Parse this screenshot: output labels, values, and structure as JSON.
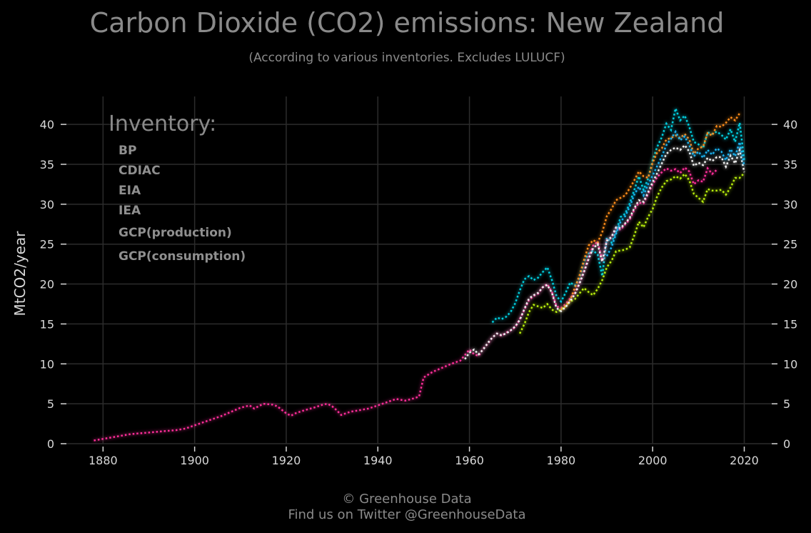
{
  "chart_data": {
    "type": "line",
    "title": "Carbon Dioxide (CO2) emissions: New Zealand",
    "subtitle": "(According to various inventories. Excludes LULUCF)",
    "ylabel": "MtCO2/year",
    "xlim": [
      1872,
      2026
    ],
    "ylim": [
      0,
      43.5
    ],
    "x_ticks": [
      1880,
      1900,
      1920,
      1940,
      1960,
      1980,
      2000,
      2020
    ],
    "y_ticks": [
      0,
      5,
      10,
      15,
      20,
      25,
      30,
      35,
      40
    ],
    "grid": true,
    "legend_title": "Inventory:",
    "legend_position": "top-left",
    "series": [
      {
        "name": "BP",
        "color": "#00cfe0",
        "x": [
          1965,
          1966,
          1967,
          1968,
          1969,
          1970,
          1971,
          1972,
          1973,
          1974,
          1975,
          1976,
          1977,
          1978,
          1979,
          1980,
          1981,
          1982,
          1983,
          1984,
          1985,
          1986,
          1987,
          1988,
          1989,
          1990,
          1991,
          1992,
          1993,
          1994,
          1995,
          1996,
          1997,
          1998,
          1999,
          2000,
          2001,
          2002,
          2003,
          2004,
          2005,
          2006,
          2007,
          2008,
          2009,
          2010,
          2011,
          2012,
          2013,
          2014,
          2015,
          2016,
          2017,
          2018,
          2019,
          2020
        ],
        "y": [
          15.2,
          15.8,
          15.6,
          15.9,
          16.5,
          17.6,
          19.2,
          20.6,
          21.0,
          20.5,
          20.8,
          21.5,
          22.1,
          20.5,
          18.5,
          17.8,
          18.9,
          20.2,
          19.8,
          20.6,
          22.8,
          23.8,
          24.2,
          23.7,
          21.0,
          25.8,
          25.2,
          26.5,
          28.4,
          28.8,
          30.1,
          31.8,
          33.5,
          31.8,
          33.2,
          35.5,
          37.2,
          38.4,
          40.1,
          39.3,
          42.0,
          40.5,
          41.1,
          39.7,
          37.8,
          37.5,
          37.0,
          39.0,
          38.8,
          39.1,
          38.7,
          38.1,
          39.4,
          37.8,
          40.2,
          35.5
        ]
      },
      {
        "name": "CDIAC",
        "color": "#ff2d9a",
        "x": [
          1878,
          1880,
          1882,
          1884,
          1886,
          1888,
          1890,
          1892,
          1894,
          1896,
          1898,
          1900,
          1902,
          1904,
          1906,
          1908,
          1910,
          1912,
          1913,
          1915,
          1917,
          1918,
          1920,
          1921,
          1922,
          1924,
          1926,
          1928,
          1929,
          1930,
          1931,
          1932,
          1934,
          1936,
          1938,
          1940,
          1942,
          1944,
          1946,
          1948,
          1949,
          1950,
          1952,
          1954,
          1956,
          1958,
          1960,
          1961,
          1962,
          1963,
          1964,
          1965,
          1966,
          1967,
          1968,
          1969,
          1970,
          1971,
          1972,
          1973,
          1974,
          1975,
          1976,
          1977,
          1978,
          1979,
          1980,
          1981,
          1982,
          1983,
          1984,
          1985,
          1986,
          1987,
          1988,
          1989,
          1990,
          1991,
          1992,
          1993,
          1994,
          1995,
          1996,
          1997,
          1998,
          1999,
          2000,
          2001,
          2002,
          2003,
          2004,
          2005,
          2006,
          2007,
          2008,
          2009,
          2010,
          2011,
          2012,
          2013,
          2014
        ],
        "y": [
          0.4,
          0.6,
          0.8,
          1.0,
          1.2,
          1.3,
          1.4,
          1.5,
          1.6,
          1.7,
          1.9,
          2.3,
          2.7,
          3.1,
          3.5,
          4.0,
          4.5,
          4.8,
          4.4,
          5.0,
          4.9,
          4.7,
          3.8,
          3.5,
          3.8,
          4.2,
          4.5,
          4.9,
          5.0,
          4.7,
          4.2,
          3.6,
          4.0,
          4.2,
          4.4,
          4.8,
          5.2,
          5.6,
          5.4,
          5.7,
          5.9,
          8.3,
          9.0,
          9.5,
          10.0,
          10.4,
          11.8,
          11.2,
          11.0,
          11.9,
          12.5,
          13.3,
          13.8,
          13.5,
          13.9,
          14.2,
          14.6,
          15.6,
          16.8,
          18.0,
          18.5,
          18.8,
          19.6,
          20.0,
          19.0,
          17.2,
          17.0,
          17.5,
          18.2,
          18.9,
          20.1,
          21.6,
          23.3,
          24.8,
          25.3,
          22.9,
          25.5,
          25.8,
          27.0,
          26.8,
          27.5,
          28.1,
          29.3,
          30.2,
          30.1,
          31.3,
          32.5,
          33.4,
          34.0,
          34.5,
          34.2,
          34.4,
          33.9,
          34.6,
          34.1,
          32.5,
          33.0,
          32.8,
          34.5,
          33.8,
          34.3
        ]
      },
      {
        "name": "EIA",
        "color": "#ff8c1a",
        "x": [
          1980,
          1981,
          1982,
          1983,
          1984,
          1985,
          1986,
          1987,
          1988,
          1989,
          1990,
          1991,
          1992,
          1993,
          1994,
          1995,
          1996,
          1997,
          1998,
          1999,
          2000,
          2001,
          2002,
          2003,
          2004,
          2005,
          2006,
          2007,
          2008,
          2009,
          2010,
          2011,
          2012,
          2013,
          2014,
          2015,
          2016,
          2017,
          2018,
          2019
        ],
        "y": [
          16.8,
          17.2,
          18.0,
          19.5,
          21.0,
          23.0,
          24.8,
          25.5,
          25.2,
          26.5,
          28.5,
          29.4,
          30.5,
          30.8,
          31.1,
          32.0,
          33.0,
          34.1,
          33.5,
          33.3,
          35.2,
          36.5,
          37.0,
          38.1,
          38.3,
          38.6,
          38.3,
          38.8,
          38.1,
          36.3,
          37.0,
          37.2,
          38.9,
          38.6,
          39.8,
          39.7,
          40.2,
          40.9,
          40.5,
          41.4
        ]
      },
      {
        "name": "IEA",
        "color": "#b8ee10",
        "x": [
          1971,
          1972,
          1973,
          1974,
          1975,
          1976,
          1977,
          1978,
          1979,
          1980,
          1981,
          1982,
          1983,
          1984,
          1985,
          1986,
          1987,
          1988,
          1989,
          1990,
          1991,
          1992,
          1993,
          1994,
          1995,
          1996,
          1997,
          1998,
          1999,
          2000,
          2001,
          2002,
          2003,
          2004,
          2005,
          2006,
          2007,
          2008,
          2009,
          2010,
          2011,
          2012,
          2013,
          2014,
          2015,
          2016,
          2017,
          2018,
          2019,
          2020
        ],
        "y": [
          13.8,
          15.0,
          16.5,
          17.4,
          17.2,
          17.0,
          17.5,
          16.8,
          16.5,
          16.8,
          17.2,
          17.8,
          18.1,
          18.8,
          19.5,
          19.0,
          18.6,
          19.4,
          20.5,
          22.1,
          22.9,
          24.1,
          24.2,
          24.3,
          24.6,
          26.1,
          27.8,
          27.1,
          28.4,
          29.4,
          31.0,
          32.1,
          32.9,
          33.1,
          33.5,
          33.2,
          33.8,
          33.0,
          31.3,
          30.8,
          30.3,
          31.9,
          31.7,
          31.7,
          31.8,
          31.2,
          32.1,
          33.3,
          33.3,
          33.9
        ]
      },
      {
        "name": "GCP(production)",
        "color": "#f2f2f2",
        "x": [
          1959,
          1960,
          1961,
          1962,
          1963,
          1964,
          1965,
          1966,
          1967,
          1968,
          1969,
          1970,
          1971,
          1972,
          1973,
          1974,
          1975,
          1976,
          1977,
          1978,
          1979,
          1980,
          1981,
          1982,
          1983,
          1984,
          1985,
          1986,
          1987,
          1988,
          1989,
          1990,
          1991,
          1992,
          1993,
          1994,
          1995,
          1996,
          1997,
          1998,
          1999,
          2000,
          2001,
          2002,
          2003,
          2004,
          2005,
          2006,
          2007,
          2008,
          2009,
          2010,
          2011,
          2012,
          2013,
          2014,
          2015,
          2016,
          2017,
          2018,
          2019,
          2020
        ],
        "y": [
          10.6,
          11.4,
          11.8,
          11.2,
          11.8,
          12.6,
          13.3,
          13.8,
          13.6,
          13.8,
          14.2,
          14.7,
          15.5,
          16.9,
          18.2,
          18.6,
          18.9,
          19.6,
          19.9,
          18.9,
          17.0,
          16.6,
          17.1,
          17.9,
          18.7,
          20.0,
          21.5,
          23.1,
          24.5,
          25.0,
          22.8,
          25.4,
          25.9,
          27.1,
          27.0,
          27.6,
          28.3,
          29.5,
          30.5,
          30.3,
          31.5,
          32.8,
          33.9,
          35.1,
          36.3,
          36.8,
          37.1,
          36.8,
          37.4,
          36.6,
          34.8,
          35.2,
          34.9,
          35.8,
          35.4,
          35.9,
          35.9,
          34.7,
          36.1,
          35.1,
          36.8,
          34.0
        ]
      },
      {
        "name": "GCP(consumption)",
        "color": "#1ab2f0",
        "x": [
          1990,
          1991,
          1992,
          1993,
          1994,
          1995,
          1996,
          1997,
          1998,
          1999,
          2000,
          2001,
          2002,
          2003,
          2004,
          2005,
          2006,
          2007,
          2008,
          2009,
          2010,
          2011,
          2012,
          2013,
          2014,
          2015,
          2016,
          2017,
          2018,
          2019,
          2020
        ],
        "y": [
          23.5,
          24.6,
          26.3,
          27.8,
          28.5,
          29.7,
          31.2,
          32.2,
          31.1,
          32.5,
          33.6,
          34.8,
          36.0,
          37.4,
          38.2,
          39.1,
          38.0,
          38.5,
          37.4,
          36.0,
          36.6,
          35.8,
          36.8,
          36.2,
          37.0,
          36.6,
          35.5,
          36.9,
          36.0,
          37.8,
          34.8
        ]
      }
    ],
    "footer_line1": "© Greenhouse Data",
    "footer_line2": "Find us on Twitter @GreenhouseData"
  }
}
